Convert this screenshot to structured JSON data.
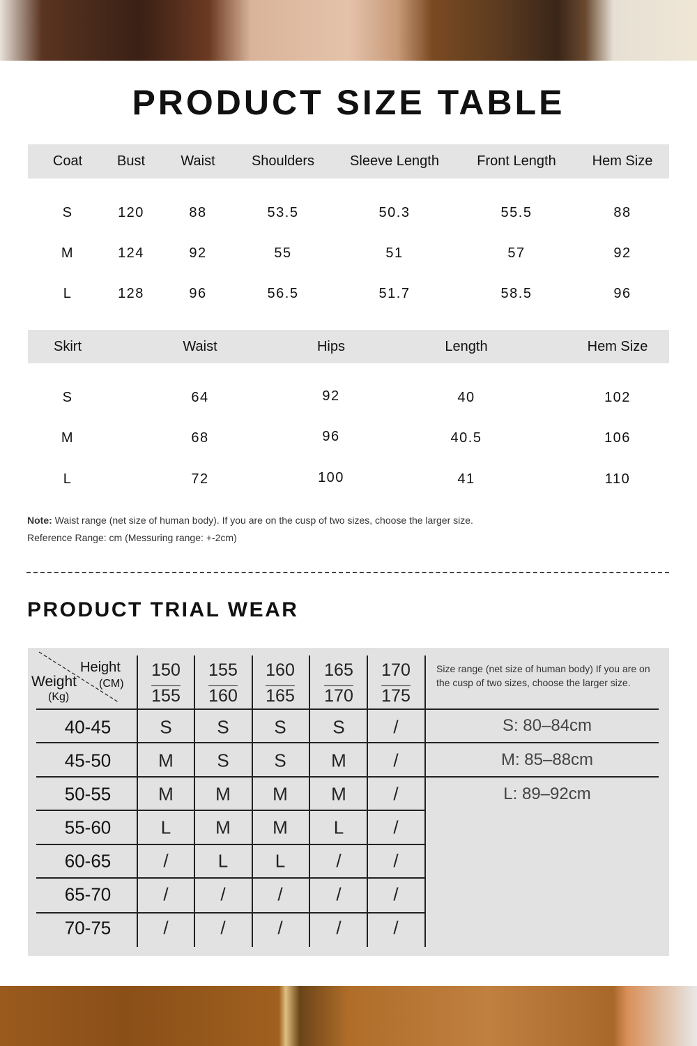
{
  "title": "PRODUCT SIZE TABLE",
  "coat": {
    "headers": [
      "Coat",
      "Bust",
      "Waist",
      "Shoulders",
      "Sleeve Length",
      "Front Length",
      "Hem Size"
    ],
    "rows": [
      [
        "S",
        "120",
        "88",
        "53.5",
        "50.3",
        "55.5",
        "88"
      ],
      [
        "M",
        "124",
        "92",
        "55",
        "51",
        "57",
        "92"
      ],
      [
        "L",
        "128",
        "96",
        "56.5",
        "51.7",
        "58.5",
        "96"
      ]
    ]
  },
  "skirt": {
    "headers": [
      "Skirt",
      "Waist",
      "Hips",
      "Length",
      "Hem Size"
    ],
    "rows": [
      [
        "S",
        "64",
        "92",
        "40",
        "102"
      ],
      [
        "M",
        "68",
        "96",
        "40.5",
        "106"
      ],
      [
        "L",
        "72",
        "100",
        "41",
        "110"
      ]
    ]
  },
  "note": {
    "label": "Note:",
    "text": " Waist range (net size of human body). If you are on the cusp of two sizes, choose the larger size.",
    "reference": "Reference Range: cm (Messuring range: +-2cm)"
  },
  "trial": {
    "title": "PRODUCT TRIAL WEAR",
    "corner": {
      "height": "Height",
      "cm": "(CM)",
      "weight": "Weight",
      "kg": "(Kg)"
    },
    "height_ranges": [
      [
        "150",
        "155"
      ],
      [
        "155",
        "160"
      ],
      [
        "160",
        "165"
      ],
      [
        "165",
        "170"
      ],
      [
        "170",
        "175"
      ]
    ],
    "rows": [
      [
        "40-45",
        "S",
        "S",
        "S",
        "S",
        "/"
      ],
      [
        "45-50",
        "M",
        "S",
        "S",
        "M",
        "/"
      ],
      [
        "50-55",
        "M",
        "M",
        "M",
        "M",
        "/"
      ],
      [
        "55-60",
        "L",
        "M",
        "M",
        "L",
        "/"
      ],
      [
        "60-65",
        "/",
        "L",
        "L",
        "/",
        "/"
      ],
      [
        "65-70",
        "/",
        "/",
        "/",
        "/",
        "/"
      ],
      [
        "70-75",
        "/",
        "/",
        "/",
        "/",
        "/"
      ]
    ],
    "size_note": "Size range (net size of human body) If you are on the cusp of two sizes, choose the larger size.",
    "ranges": [
      "S: 80–84cm",
      "M: 85–88cm",
      "L: 89–92cm"
    ]
  },
  "colors": {
    "band": "#e4e4e4",
    "trial_bg": "#e2e2e2"
  }
}
